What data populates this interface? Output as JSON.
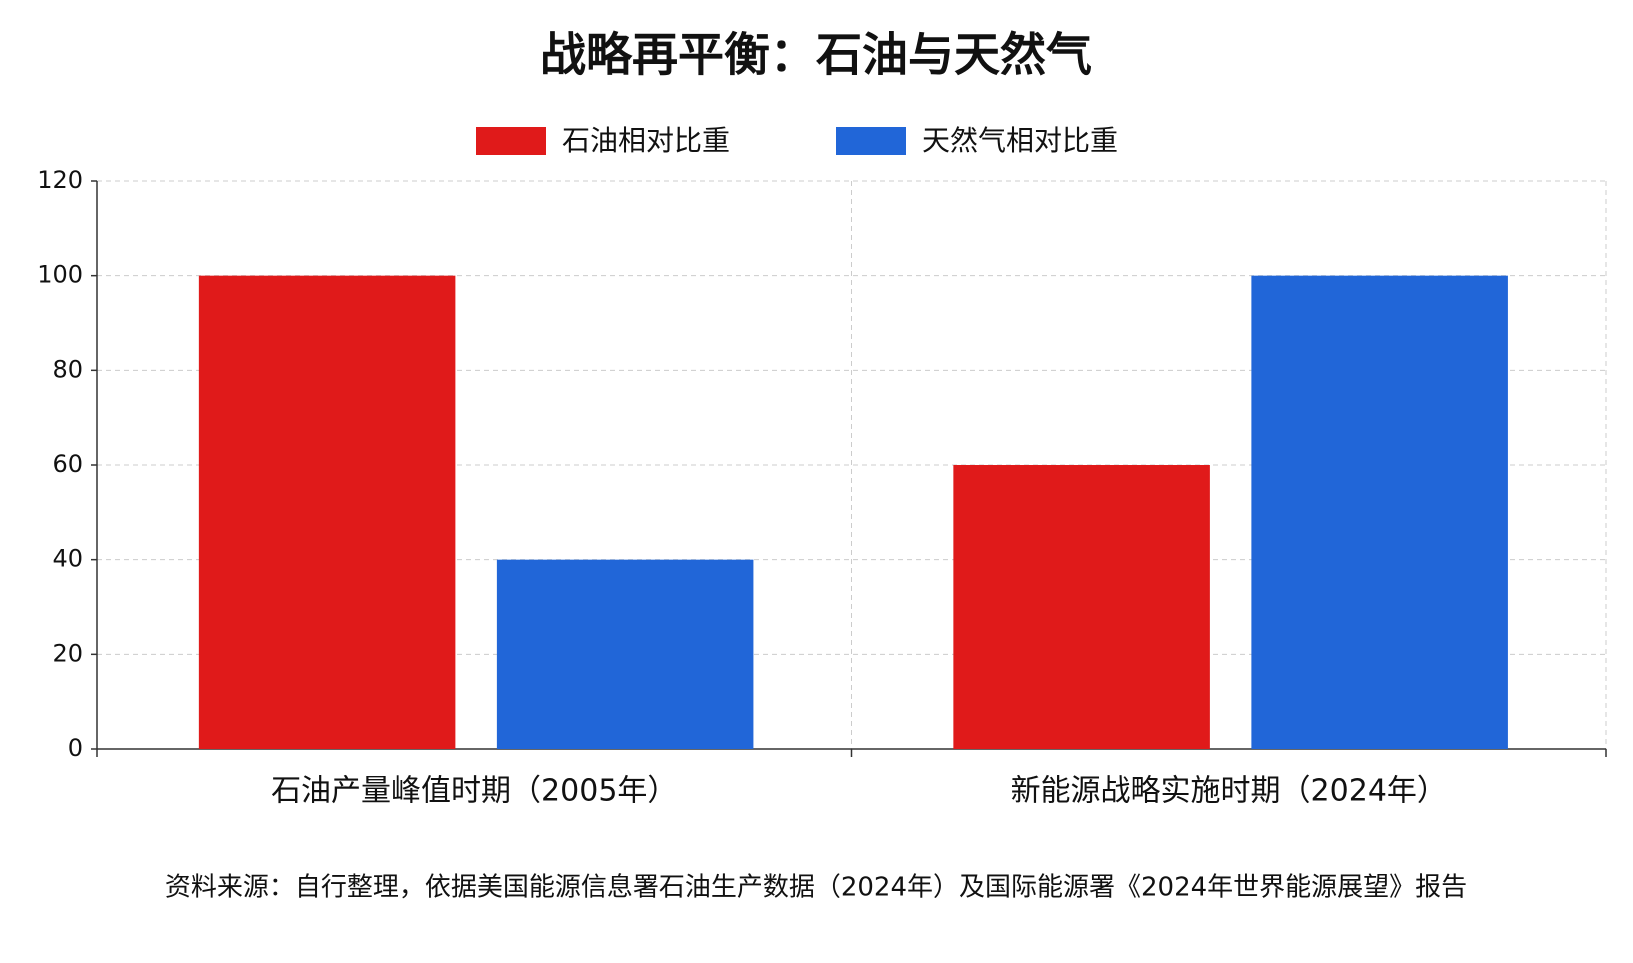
{
  "chart_data": {
    "type": "bar",
    "title": "战略再平衡：石油与天然气",
    "categories": [
      "石油产量峰值时期（2005年）",
      "新能源战略实施时期（2024年）"
    ],
    "series": [
      {
        "name": "石油相对比重",
        "color": "#e01a1a",
        "values": [
          100,
          60
        ]
      },
      {
        "name": "天然气相对比重",
        "color": "#2166d8",
        "values": [
          40,
          100
        ]
      }
    ],
    "ylim": [
      0,
      120
    ],
    "yticks": [
      0,
      20,
      40,
      60,
      80,
      100,
      120
    ],
    "grid": true,
    "legend": "top",
    "source": "资料来源：自行整理，依据美国能源信息署石油生产数据（2024年）及国际能源署《2024年世界能源展望》报告"
  }
}
